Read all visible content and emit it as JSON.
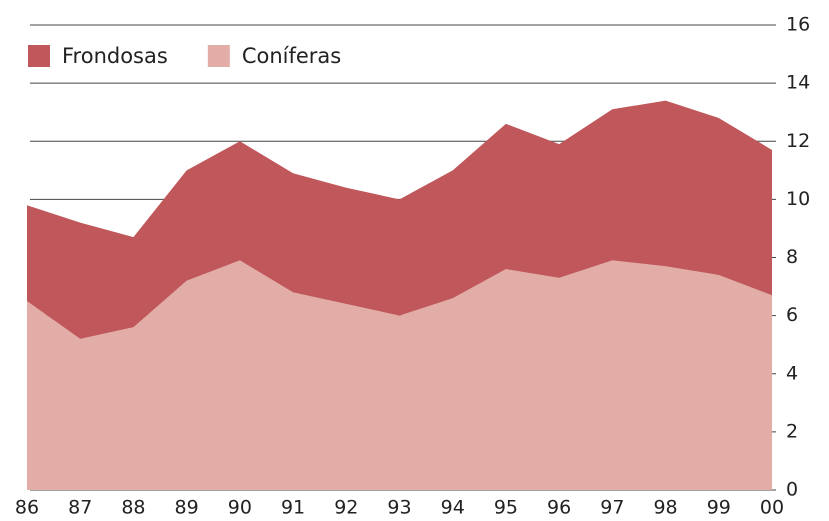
{
  "chart_data": {
    "type": "stacked_area",
    "categories": [
      "86",
      "87",
      "88",
      "89",
      "90",
      "91",
      "92",
      "93",
      "94",
      "95",
      "96",
      "97",
      "98",
      "99",
      "00"
    ],
    "series": [
      {
        "name": "Frondosas",
        "color": "#c0575a",
        "values": [
          3.3,
          4.0,
          3.1,
          3.8,
          4.1,
          4.1,
          4.0,
          4.0,
          4.4,
          5.0,
          4.6,
          5.2,
          5.7,
          5.4,
          5.0
        ]
      },
      {
        "name": "Coníferas",
        "color": "#e2ada7",
        "values": [
          6.5,
          5.2,
          5.6,
          7.2,
          7.9,
          6.8,
          6.4,
          6.0,
          6.6,
          7.6,
          7.3,
          7.9,
          7.7,
          7.4,
          6.7
        ]
      }
    ],
    "ylim": [
      0,
      16
    ],
    "yticks": [
      0,
      2,
      4,
      6,
      8,
      10,
      12,
      14,
      16
    ],
    "grid": true,
    "legend": "top-left"
  }
}
